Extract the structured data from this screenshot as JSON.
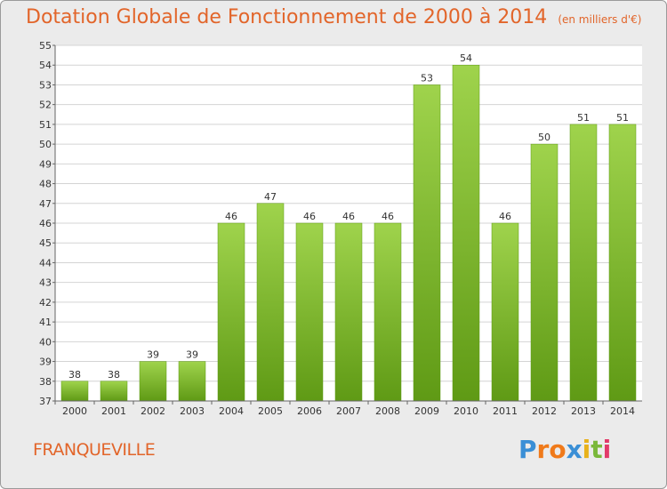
{
  "title": "Dotation Globale de Fonctionnement de 2000 à 2014",
  "unit": "(en milliers d'€)",
  "commune": "FRANQUEVILLE",
  "brand": {
    "letters": [
      "P",
      "r",
      "o",
      "x",
      "i",
      "t",
      "i"
    ],
    "colors": [
      "#3a8fd6",
      "#f07a1a",
      "#f07a1a",
      "#3a8fd6",
      "#e8b21a",
      "#7ab83a",
      "#e23a6a"
    ]
  },
  "colors": {
    "bar_light": "#9fd34c",
    "bar_dark": "#5f9a15",
    "title": "#e2652a",
    "plot_bg": "#ffffff",
    "grid": "#d4d4d4"
  },
  "chart_data": {
    "type": "bar",
    "categories": [
      "2000",
      "2001",
      "2002",
      "2003",
      "2004",
      "2005",
      "2006",
      "2007",
      "2008",
      "2009",
      "2010",
      "2011",
      "2012",
      "2013",
      "2014"
    ],
    "values": [
      38,
      38,
      39,
      39,
      46,
      47,
      46,
      46,
      46,
      53,
      54,
      46,
      50,
      51,
      51
    ],
    "ylim": [
      37,
      55
    ],
    "yticks": [
      37,
      38,
      39,
      40,
      41,
      42,
      43,
      44,
      45,
      46,
      47,
      48,
      49,
      50,
      51,
      52,
      53,
      54,
      55
    ],
    "grid": true,
    "legend": "none"
  }
}
